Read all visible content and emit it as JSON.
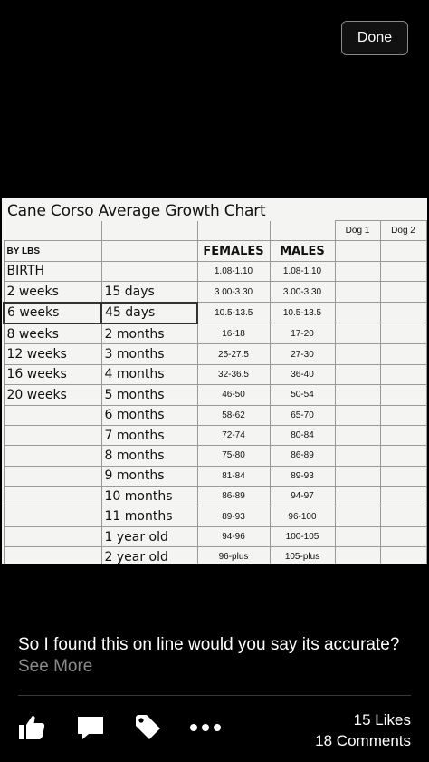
{
  "toolbar": {
    "done_label": "Done"
  },
  "photo": {
    "title": "Cane Corso Average Growth Chart",
    "dog_headers": [
      "Dog 1",
      "Dog 2"
    ],
    "column_headers": {
      "lbs": "BY LBS",
      "females": "FEMALES",
      "males": "MALES"
    },
    "rows": [
      {
        "lbs": "BIRTH",
        "age": "",
        "females": "1.08-1.10",
        "males": "1.08-1.10"
      },
      {
        "lbs": "2 weeks",
        "age": "15 days",
        "females": "3.00-3.30",
        "males": "3.00-3.30"
      },
      {
        "lbs": "6 weeks",
        "age": "45 days",
        "females": "10.5-13.5",
        "males": "10.5-13.5"
      },
      {
        "lbs": "8 weeks",
        "age": "2 months",
        "females": "16-18",
        "males": "17-20"
      },
      {
        "lbs": "12 weeks",
        "age": "3 months",
        "females": "25-27.5",
        "males": "27-30"
      },
      {
        "lbs": "16 weeks",
        "age": "4 months",
        "females": "32-36.5",
        "males": "36-40"
      },
      {
        "lbs": "20 weeks",
        "age": "5 months",
        "females": "46-50",
        "males": "50-54"
      },
      {
        "lbs": "",
        "age": "6 months",
        "females": "58-62",
        "males": "65-70"
      },
      {
        "lbs": "",
        "age": "7 months",
        "females": "72-74",
        "males": "80-84"
      },
      {
        "lbs": "",
        "age": "8 months",
        "females": "75-80",
        "males": "86-89"
      },
      {
        "lbs": "",
        "age": "9 months",
        "females": "81-84",
        "males": "89-93"
      },
      {
        "lbs": "",
        "age": "10 months",
        "females": "86-89",
        "males": "94-97"
      },
      {
        "lbs": "",
        "age": "11 months",
        "females": "89-93",
        "males": "96-100"
      },
      {
        "lbs": "",
        "age": "1 year old",
        "females": "94-96",
        "males": "100-105"
      },
      {
        "lbs": "",
        "age": "2 year old",
        "females": "96-plus",
        "males": "105-plus"
      }
    ]
  },
  "post": {
    "caption": "So I found this on line would you say its accurate?",
    "see_more": "See More"
  },
  "actions": {
    "icons": [
      "like-icon",
      "comment-icon",
      "tag-icon",
      "more-icon"
    ]
  },
  "counts": {
    "likes": "15 Likes",
    "comments": "18 Comments"
  }
}
